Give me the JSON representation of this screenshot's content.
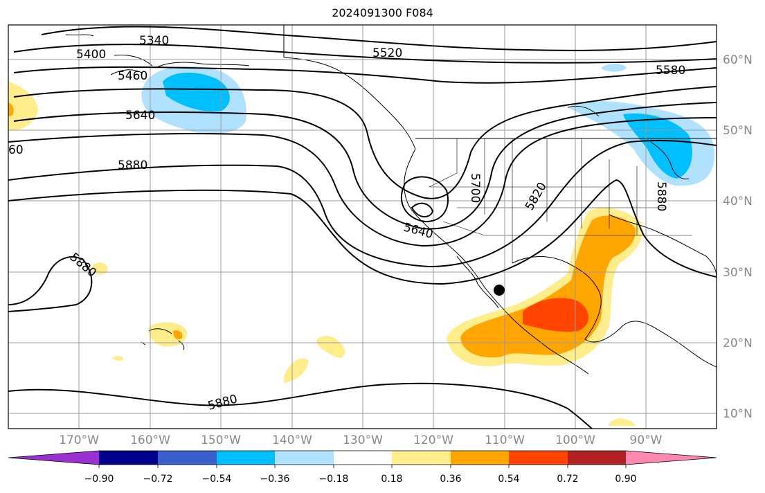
{
  "title": "2024091300 F084",
  "lon_labels": [
    "170°W",
    "160°W",
    "150°W",
    "140°W",
    "130°W",
    "120°W",
    "110°W",
    "100°W",
    "90°W"
  ],
  "lat_labels": [
    "60°N",
    "50°N",
    "40°N",
    "30°N",
    "20°N",
    "10°N"
  ],
  "contour_labels": [
    "5340",
    "5400",
    "5460",
    "5520",
    "5580",
    "5640",
    "60",
    "5880",
    "5700",
    "5820",
    "5880",
    "5640",
    "5880",
    "5880"
  ],
  "colorbar": {
    "ticks": [
      "−0.90",
      "−0.72",
      "−0.54",
      "−0.36",
      "−0.18",
      "0.18",
      "0.36",
      "0.54",
      "0.72",
      "0.90"
    ],
    "colors": [
      "#9b30d0",
      "#00008b",
      "#3a5fcd",
      "#00bfff",
      "#b0e2ff",
      "#ffffff",
      "#ffec8b",
      "#ffa500",
      "#ff4500",
      "#b22222",
      "#ff88b0"
    ]
  },
  "marker": "storm-center"
}
